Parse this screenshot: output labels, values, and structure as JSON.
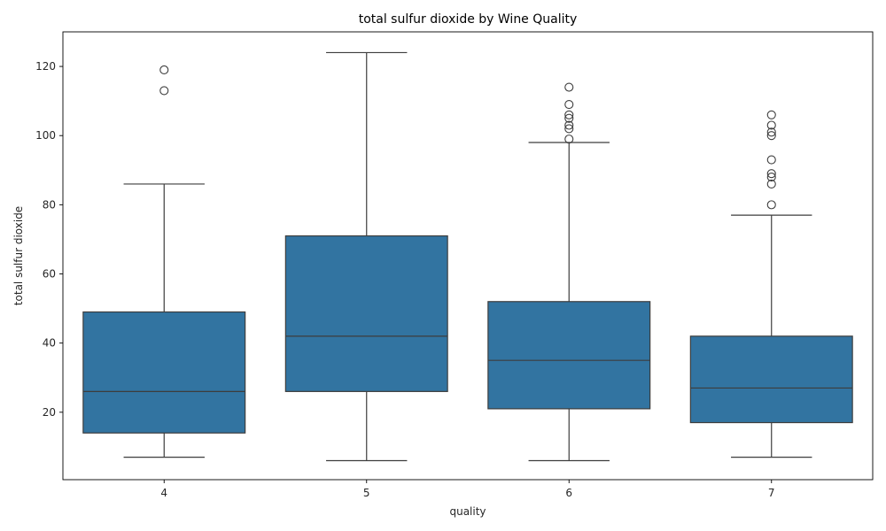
{
  "chart_data": {
    "type": "box",
    "title": "total sulfur dioxide by Wine Quality",
    "xlabel": "quality",
    "ylabel": "total sulfur dioxide",
    "categories": [
      "4",
      "5",
      "6",
      "7"
    ],
    "ylim": [
      0.5,
      130
    ],
    "yticks": [
      "20",
      "40",
      "60",
      "80",
      "100",
      "120"
    ],
    "grid": false,
    "legend": "none",
    "colors": {
      "box_fill": "#3274a1",
      "line": "#3d3d3d",
      "axis": "#000000"
    },
    "boxes": [
      {
        "category": "4",
        "whisker_low": 7,
        "q1": 14,
        "median": 26,
        "q3": 49,
        "whisker_high": 86,
        "outliers": [
          113,
          119
        ]
      },
      {
        "category": "5",
        "whisker_low": 6,
        "q1": 26,
        "median": 42,
        "q3": 71,
        "whisker_high": 124,
        "outliers": []
      },
      {
        "category": "6",
        "whisker_low": 6,
        "q1": 21,
        "median": 35,
        "q3": 52,
        "whisker_high": 98,
        "outliers": [
          99,
          102,
          103,
          105,
          106,
          109,
          114
        ]
      },
      {
        "category": "7",
        "whisker_low": 7,
        "q1": 17,
        "median": 27,
        "q3": 42,
        "whisker_high": 77,
        "outliers": [
          80,
          86,
          88,
          89,
          93,
          100,
          101,
          103,
          106
        ]
      }
    ]
  }
}
